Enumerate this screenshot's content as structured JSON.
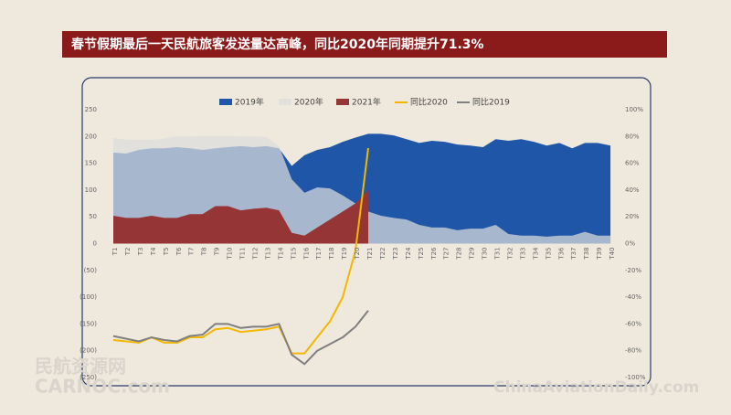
{
  "title": "春节假期最后一天民航旅客发送量达高峰，同比2020年同期提升71.3%",
  "watermarks": [
    "民航资源网",
    "CARNOC.com",
    "ChinaAviationDaily.com"
  ],
  "chart_data": {
    "type": "area",
    "categories": [
      "T1",
      "T2",
      "T3",
      "T4",
      "T5",
      "T6",
      "T7",
      "T8",
      "T9",
      "T10",
      "T11",
      "T12",
      "T13",
      "T14",
      "T15",
      "T16",
      "T17",
      "T18",
      "T19",
      "T20",
      "T21",
      "T22",
      "T23",
      "T24",
      "T25",
      "T26",
      "T27",
      "T28",
      "T29",
      "T30",
      "T31",
      "T32",
      "T33",
      "T34",
      "T35",
      "T36",
      "T37",
      "T38",
      "T39",
      "T40"
    ],
    "series": [
      {
        "name": "2019年",
        "type": "area",
        "color": "#1f56a8",
        "values": [
          170,
          168,
          175,
          178,
          178,
          180,
          178,
          175,
          178,
          180,
          182,
          180,
          182,
          178,
          145,
          165,
          175,
          180,
          190,
          198,
          205,
          205,
          202,
          195,
          188,
          192,
          190,
          185,
          183,
          180,
          195,
          192,
          195,
          190,
          183,
          188,
          178,
          188,
          188,
          183
        ]
      },
      {
        "name": "2020年",
        "type": "area",
        "color": "#dcdcdc",
        "values": [
          197,
          194,
          194,
          194,
          196,
          200,
          200,
          201,
          201,
          201,
          200,
          200,
          199,
          182,
          120,
          95,
          105,
          103,
          90,
          75,
          60,
          52,
          48,
          45,
          35,
          30,
          30,
          25,
          28,
          28,
          35,
          18,
          15,
          15,
          13,
          15,
          15,
          22,
          15,
          15
        ]
      },
      {
        "name": "2021年",
        "type": "area",
        "color": "#963535",
        "values": [
          52,
          48,
          48,
          52,
          48,
          48,
          55,
          55,
          70,
          70,
          62,
          65,
          67,
          62,
          20,
          15,
          30,
          45,
          60,
          75,
          100,
          null,
          null,
          null,
          null,
          null,
          null,
          null,
          null,
          null,
          null,
          null,
          null,
          null,
          null,
          null,
          null,
          null,
          null,
          null
        ]
      },
      {
        "name": "同比2020",
        "type": "line",
        "axis": "y2",
        "color": "#f2b800",
        "values": [
          -72,
          -73,
          -74,
          -70,
          -74,
          -74,
          -70,
          -70,
          -64,
          -63,
          -66,
          -65,
          -64,
          -62,
          -82,
          -82,
          -70,
          -58,
          -40,
          -5,
          71.3,
          null,
          null,
          null,
          null,
          null,
          null,
          null,
          null,
          null,
          null,
          null,
          null,
          null,
          null,
          null,
          null,
          null,
          null,
          null
        ]
      },
      {
        "name": "同比2019",
        "type": "line",
        "axis": "y2",
        "color": "#7f7f7f",
        "values": [
          -69,
          -71,
          -73,
          -70,
          -72,
          -73,
          -69,
          -68,
          -60,
          -60,
          -63,
          -62,
          -62,
          -60,
          -83,
          -90,
          -80,
          -75,
          -70,
          -62,
          -50,
          null,
          null,
          null,
          null,
          null,
          null,
          null,
          null,
          null,
          null,
          null,
          null,
          null,
          null,
          null,
          null,
          null,
          null,
          null
        ]
      }
    ],
    "ylim": [
      -250,
      250
    ],
    "yticks": [
      {
        "value": -250,
        "label": "(250)"
      },
      {
        "value": -200,
        "label": "(200)"
      },
      {
        "value": -150,
        "label": "(150)"
      },
      {
        "value": -100,
        "label": "(100)"
      },
      {
        "value": -50,
        "label": "(50)"
      },
      0,
      50,
      100,
      150,
      200,
      250
    ],
    "y2lim": [
      -100,
      100
    ],
    "y2ticks": [
      {
        "value": -100,
        "label": "-100%"
      },
      {
        "value": -80,
        "label": "-80%"
      },
      {
        "value": -60,
        "label": "-60%"
      },
      {
        "value": -40,
        "label": "-40%"
      },
      {
        "value": -20,
        "label": "-20%"
      },
      {
        "value": 0,
        "label": "0%"
      },
      {
        "value": 20,
        "label": "20%"
      },
      {
        "value": 40,
        "label": "40%"
      },
      {
        "value": 60,
        "label": "60%"
      },
      {
        "value": 80,
        "label": "80%"
      },
      {
        "value": 100,
        "label": "100%"
      }
    ],
    "legend": "top"
  }
}
